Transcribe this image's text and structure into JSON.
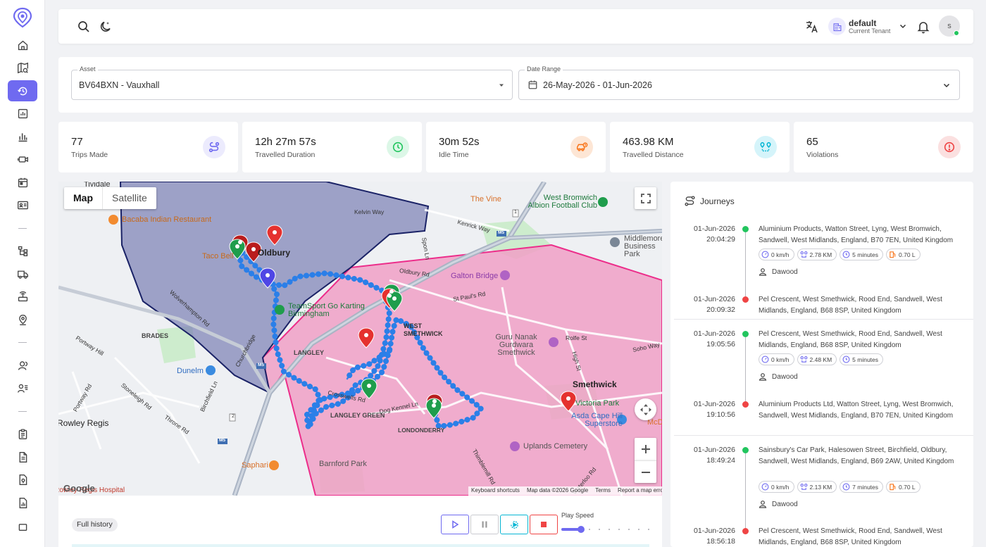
{
  "sidebar": {
    "logo_icon": "location-pin-logo-icon",
    "items": [
      {
        "icon": "home-icon"
      },
      {
        "icon": "map-search-icon"
      },
      {
        "icon": "history-icon",
        "active": true
      },
      {
        "icon": "analytics-icon"
      },
      {
        "icon": "bar-chart-icon"
      },
      {
        "icon": "camera-icon"
      },
      {
        "icon": "calendar-icon"
      },
      {
        "icon": "id-card-icon"
      },
      {
        "icon": "hierarchy-icon"
      },
      {
        "icon": "truck-icon"
      },
      {
        "icon": "device-icon"
      },
      {
        "icon": "geofence-pin-icon"
      },
      {
        "icon": "users-icon"
      },
      {
        "icon": "user-list-icon"
      },
      {
        "icon": "clipboard-icon"
      },
      {
        "icon": "document-icon"
      },
      {
        "icon": "map-document-icon"
      },
      {
        "icon": "report-icon"
      },
      {
        "icon": "more-icon"
      }
    ],
    "accent": "#6f6af0"
  },
  "topbar": {
    "tenant_name": "default",
    "tenant_sub": "Current Tenant",
    "avatar_initial": "s"
  },
  "filters": {
    "asset_label": "Asset",
    "asset_value": "BV64BXN - Vauxhall",
    "date_label": "Date Range",
    "date_value": "26-May-2026 - 01-Jun-2026"
  },
  "stats": [
    {
      "value": "77",
      "label": "Trips Made",
      "icon": "route-icon",
      "color": "#6f6af0",
      "bg": "#ecebfd"
    },
    {
      "value": "12h 27m 57s",
      "label": "Travelled Duration",
      "icon": "clock-icon",
      "color": "#22c55e",
      "bg": "#dcf7e7"
    },
    {
      "value": "30m 52s",
      "label": "Idle Time",
      "icon": "car-idle-icon",
      "color": "#f97316",
      "bg": "#fde6d5"
    },
    {
      "value": "463.98 KM",
      "label": "Travelled Distance",
      "icon": "distance-icon",
      "color": "#06b6d4",
      "bg": "#d5f4fa"
    },
    {
      "value": "65",
      "label": "Violations",
      "icon": "alert-icon",
      "color": "#ef4444",
      "bg": "#fbe0e0"
    }
  ],
  "map": {
    "tabs": {
      "map": "Map",
      "satellite": "Satellite"
    },
    "labels": {
      "tividale": "Tividale",
      "bacaba": "Bacaba Indian Restaurant",
      "taco_bell": "Taco Bell",
      "oldbury": "Oldbury",
      "kelvin_way": "Kelvin Way",
      "the_vine": "The Vine",
      "west_bromwich_albion": "West Bromwich Albion Football Club",
      "kenrick_way": "Kenrick Way",
      "middlemore": "Middlemore Business Park",
      "spon_lane": "Spon Ln",
      "oldbury_rd": "Oldbury Rd",
      "galton_bridge": "Galton Bridge",
      "st_pauls_rd": "St Paul's Rd",
      "teamsport": "TeamSport Go Karting Birmingham",
      "west_smethwick": "WEST SMETHWICK",
      "guru_nanak": "Guru Nanak Gurdwara Smethwick",
      "rolfe_st": "Rolfe St",
      "soho_way": "Soho Way",
      "brades": "BRADES",
      "langley": "LANGLEY",
      "dunelm": "Dunelm",
      "churchbridge": "Churchbridge",
      "wolverhampton_rd": "Wolverhampton Rd",
      "portway_hill": "Portway Hill",
      "portway_rd": "Portway Rd",
      "stoneleigh_rd": "Stoneleigh Rd",
      "birchfield_ln": "Birchfield Ln",
      "throne_rd": "Throne Rd",
      "crosswells_rd": "Crosswells Rd",
      "langley_green": "LANGLEY GREEN",
      "dog_kennel_ln": "Dog Kennel Ln",
      "londonderry": "LONDONDERRY",
      "smethwick": "Smethwick",
      "victoria_park": "Victoria Park",
      "asda": "Asda Cape Hill Superstore",
      "mcd": "McD",
      "uplands": "Uplands Cemetery",
      "rowley_regis": "Rowley Regis",
      "saphari": "Saphari",
      "barnford_park": "Barnford Park",
      "thimblemill_rd": "Thimblemill Rd",
      "waterloo_rd": "Waterloo Rd",
      "high_st": "High St",
      "hospital": "Rowley Regis Hospital",
      "m5": "M5",
      "a4034": "2",
      "a41": "1"
    },
    "google": "Google",
    "attribution": {
      "shortcuts": "Keyboard shortcuts",
      "data": "Map data ©2026 Google",
      "terms": "Terms",
      "report": "Report a map error"
    }
  },
  "playback": {
    "full_history": "Full history",
    "speed_label": "Play Speed",
    "speed": 0.2
  },
  "journeys": {
    "title": "Journeys",
    "entries": [
      {
        "start_date": "01-Jun-2026",
        "start_time": "20:04:29",
        "start_addr": "Aluminium Products, Watton Street, Lyng, West Bromwich, Sandwell, West Midlands, England, B70 7EN, United Kingdom",
        "speed": "0 km/h",
        "distance": "2.78 KM",
        "duration": "5 minutes",
        "fuel": "0.70 L",
        "driver": "Dawood",
        "end_date": "01-Jun-2026",
        "end_time": "20:09:32",
        "end_addr": "Pel Crescent, West Smethwick, Rood End, Sandwell, West Midlands, England, B68 8SP, United Kingdom"
      },
      {
        "start_date": "01-Jun-2026",
        "start_time": "19:05:56",
        "start_addr": "Pel Crescent, West Smethwick, Rood End, Sandwell, West Midlands, England, B68 8SP, United Kingdom",
        "speed": "0 km/h",
        "distance": "2.48 KM",
        "duration": "5 minutes",
        "driver": "Dawood",
        "end_date": "01-Jun-2026",
        "end_time": "19:10:56",
        "end_addr": "Aluminium Products Ltd, Watton Street, Lyng, West Bromwich, Sandwell, West Midlands, England, B70 7EN, United Kingdom"
      },
      {
        "start_date": "01-Jun-2026",
        "start_time": "18:49:24",
        "start_addr": "Sainsbury's Car Park, Halesowen Street, Birchfield, Oldbury, Sandwell, West Midlands, England, B69 2AW, United Kingdom",
        "speed": "0 km/h",
        "distance": "2.13 KM",
        "duration": "7 minutes",
        "fuel": "0.70 L",
        "driver": "Dawood",
        "end_date": "01-Jun-2026",
        "end_time": "18:56:18",
        "end_addr": "Pel Crescent, West Smethwick, Rood End, Sandwell, West Midlands, England, B68 8SP, United Kingdom"
      }
    ]
  }
}
